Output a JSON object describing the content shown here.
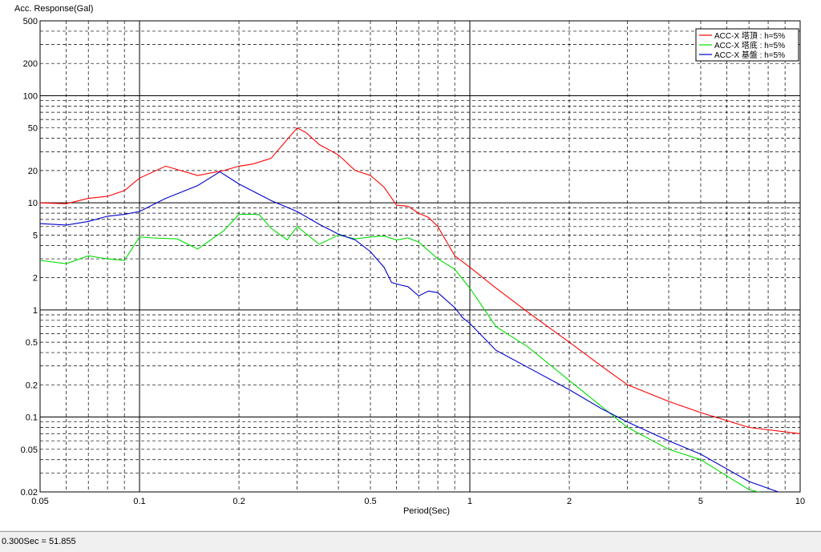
{
  "chart_data": {
    "type": "line",
    "xlabel": "Period(Sec)",
    "ylabel": "Acc. Response(Gal)",
    "xscale": "log",
    "yscale": "log",
    "xlim": [
      0.05,
      10
    ],
    "ylim": [
      0.02,
      500
    ],
    "xticks": [
      {
        "v": 0.05,
        "label": "0.05"
      },
      {
        "v": 0.1,
        "label": "0.1"
      },
      {
        "v": 0.2,
        "label": "0.2"
      },
      {
        "v": 0.5,
        "label": "0.5"
      },
      {
        "v": 1,
        "label": "1"
      },
      {
        "v": 2,
        "label": "2"
      },
      {
        "v": 5,
        "label": "5"
      },
      {
        "v": 10,
        "label": "10"
      }
    ],
    "yticks": [
      {
        "v": 0.02,
        "label": "0.02"
      },
      {
        "v": 0.05,
        "label": "0.05"
      },
      {
        "v": 0.1,
        "label": "0.1"
      },
      {
        "v": 0.2,
        "label": "0.2"
      },
      {
        "v": 0.5,
        "label": "0.5"
      },
      {
        "v": 1,
        "label": "1"
      },
      {
        "v": 2,
        "label": "2"
      },
      {
        "v": 5,
        "label": "5"
      },
      {
        "v": 10,
        "label": "10"
      },
      {
        "v": 20,
        "label": "20"
      },
      {
        "v": 50,
        "label": "50"
      },
      {
        "v": 100,
        "label": "100"
      },
      {
        "v": 200,
        "label": "200"
      },
      {
        "v": 500,
        "label": "500"
      }
    ],
    "grid": true,
    "legend_position": "top-right",
    "series": [
      {
        "name": "ACC-X 塔頂 : h=5%",
        "color": "#ff0000",
        "points": [
          [
            0.05,
            10.0
          ],
          [
            0.06,
            9.8
          ],
          [
            0.07,
            11.0
          ],
          [
            0.08,
            11.5
          ],
          [
            0.09,
            13.0
          ],
          [
            0.1,
            17.0
          ],
          [
            0.12,
            22.0
          ],
          [
            0.15,
            18.0
          ],
          [
            0.18,
            20.0
          ],
          [
            0.2,
            22.0
          ],
          [
            0.22,
            23.0
          ],
          [
            0.25,
            26.0
          ],
          [
            0.3,
            50.0
          ],
          [
            0.32,
            45.0
          ],
          [
            0.35,
            35.0
          ],
          [
            0.4,
            28.0
          ],
          [
            0.45,
            20.0
          ],
          [
            0.5,
            18.0
          ],
          [
            0.55,
            14.0
          ],
          [
            0.6,
            9.5
          ],
          [
            0.65,
            9.3
          ],
          [
            0.7,
            8.0
          ],
          [
            0.75,
            7.3
          ],
          [
            0.8,
            6.0
          ],
          [
            0.9,
            3.2
          ],
          [
            1.0,
            2.5
          ],
          [
            1.2,
            1.6
          ],
          [
            1.5,
            0.95
          ],
          [
            2.0,
            0.5
          ],
          [
            2.5,
            0.3
          ],
          [
            3.0,
            0.2
          ],
          [
            4.0,
            0.14
          ],
          [
            5.0,
            0.11
          ],
          [
            7.0,
            0.08
          ],
          [
            10.0,
            0.07
          ]
        ]
      },
      {
        "name": "ACC-X 塔底 : h=5%",
        "color": "#00dd00",
        "points": [
          [
            0.05,
            2.9
          ],
          [
            0.06,
            2.7
          ],
          [
            0.07,
            3.2
          ],
          [
            0.08,
            3.0
          ],
          [
            0.09,
            2.9
          ],
          [
            0.1,
            4.8
          ],
          [
            0.11,
            4.7
          ],
          [
            0.13,
            4.6
          ],
          [
            0.15,
            3.7
          ],
          [
            0.18,
            5.5
          ],
          [
            0.2,
            7.8
          ],
          [
            0.23,
            7.8
          ],
          [
            0.25,
            5.8
          ],
          [
            0.28,
            4.5
          ],
          [
            0.3,
            6.0
          ],
          [
            0.35,
            4.1
          ],
          [
            0.4,
            5.0
          ],
          [
            0.45,
            4.6
          ],
          [
            0.5,
            4.8
          ],
          [
            0.55,
            4.9
          ],
          [
            0.6,
            4.5
          ],
          [
            0.65,
            4.7
          ],
          [
            0.7,
            4.3
          ],
          [
            0.8,
            3.0
          ],
          [
            0.9,
            2.4
          ],
          [
            1.0,
            1.6
          ],
          [
            1.2,
            0.7
          ],
          [
            1.5,
            0.45
          ],
          [
            2.0,
            0.22
          ],
          [
            3.0,
            0.08
          ],
          [
            4.0,
            0.05
          ],
          [
            5.0,
            0.04
          ],
          [
            7.0,
            0.021
          ],
          [
            8.0,
            0.019
          ]
        ]
      },
      {
        "name": "ACC-X 基盤 : h=5%",
        "color": "#0000cc",
        "points": [
          [
            0.05,
            6.4
          ],
          [
            0.06,
            6.2
          ],
          [
            0.07,
            6.7
          ],
          [
            0.08,
            7.5
          ],
          [
            0.09,
            7.8
          ],
          [
            0.1,
            8.3
          ],
          [
            0.12,
            11.0
          ],
          [
            0.15,
            14.5
          ],
          [
            0.175,
            19.5
          ],
          [
            0.2,
            15.0
          ],
          [
            0.25,
            10.5
          ],
          [
            0.3,
            8.3
          ],
          [
            0.35,
            6.3
          ],
          [
            0.4,
            5.1
          ],
          [
            0.45,
            4.5
          ],
          [
            0.5,
            3.5
          ],
          [
            0.55,
            2.5
          ],
          [
            0.58,
            1.8
          ],
          [
            0.62,
            1.7
          ],
          [
            0.65,
            1.65
          ],
          [
            0.7,
            1.35
          ],
          [
            0.75,
            1.5
          ],
          [
            0.8,
            1.45
          ],
          [
            0.9,
            1.05
          ],
          [
            0.95,
            0.85
          ],
          [
            1.0,
            0.75
          ],
          [
            1.2,
            0.42
          ],
          [
            1.5,
            0.29
          ],
          [
            2.0,
            0.18
          ],
          [
            2.5,
            0.12
          ],
          [
            3.0,
            0.09
          ],
          [
            4.0,
            0.06
          ],
          [
            5.0,
            0.045
          ],
          [
            7.0,
            0.025
          ],
          [
            9.0,
            0.019
          ]
        ]
      }
    ]
  },
  "status": {
    "readout": "0.300Sec = 51.855"
  }
}
